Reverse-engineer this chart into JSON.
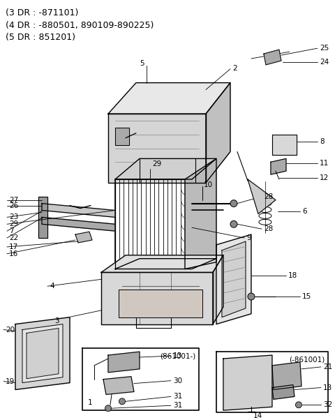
{
  "background_color": "#ffffff",
  "line_color": "#000000",
  "header_lines": [
    "(3 DR : -871101)",
    "(4 DR : -880501, 890109-890225)",
    "(5 DR : 851201)"
  ],
  "figsize": [
    4.8,
    6.02
  ],
  "dpi": 100,
  "font_size_header": 9.0,
  "font_size_label": 7.5
}
